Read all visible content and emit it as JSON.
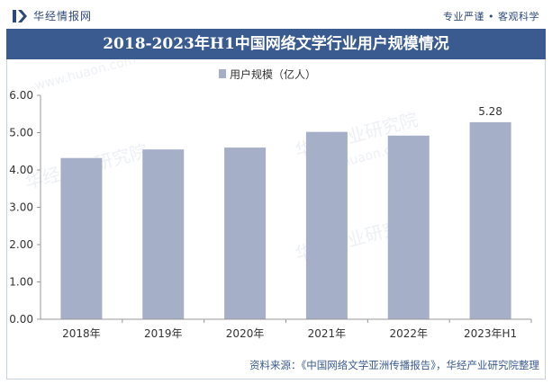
{
  "header": {
    "brand_name": "华经情报网",
    "slogan": "专业严谨 • 客观科学"
  },
  "footer": {
    "source": "资料来源：《中国网络文学亚洲传播报告》，华经产业研究院整理"
  },
  "watermark": {
    "text": "华经产业研究院",
    "url": "www.huaon.com"
  },
  "colors": {
    "bar": "#a6afc8",
    "title_bg": "#3a5b8f",
    "brand": "#2f4a7a"
  },
  "chart_data": {
    "type": "bar",
    "title": "2018-2023年H1中国网络文学行业用户规模情况",
    "categories": [
      "2018年",
      "2019年",
      "2020年",
      "2021年",
      "2022年",
      "2023年H1"
    ],
    "series": [
      {
        "name": "用户规模（亿人）",
        "values": [
          4.32,
          4.55,
          4.6,
          5.02,
          4.92,
          5.28
        ]
      }
    ],
    "data_labels": {
      "5": "5.28"
    },
    "y_ticks": [
      "0.00",
      "1.00",
      "2.00",
      "3.00",
      "4.00",
      "5.00",
      "6.00"
    ],
    "ylim": [
      0,
      6
    ],
    "xlabel": "",
    "ylabel": "",
    "legend_position": "top-center",
    "grid": false
  }
}
